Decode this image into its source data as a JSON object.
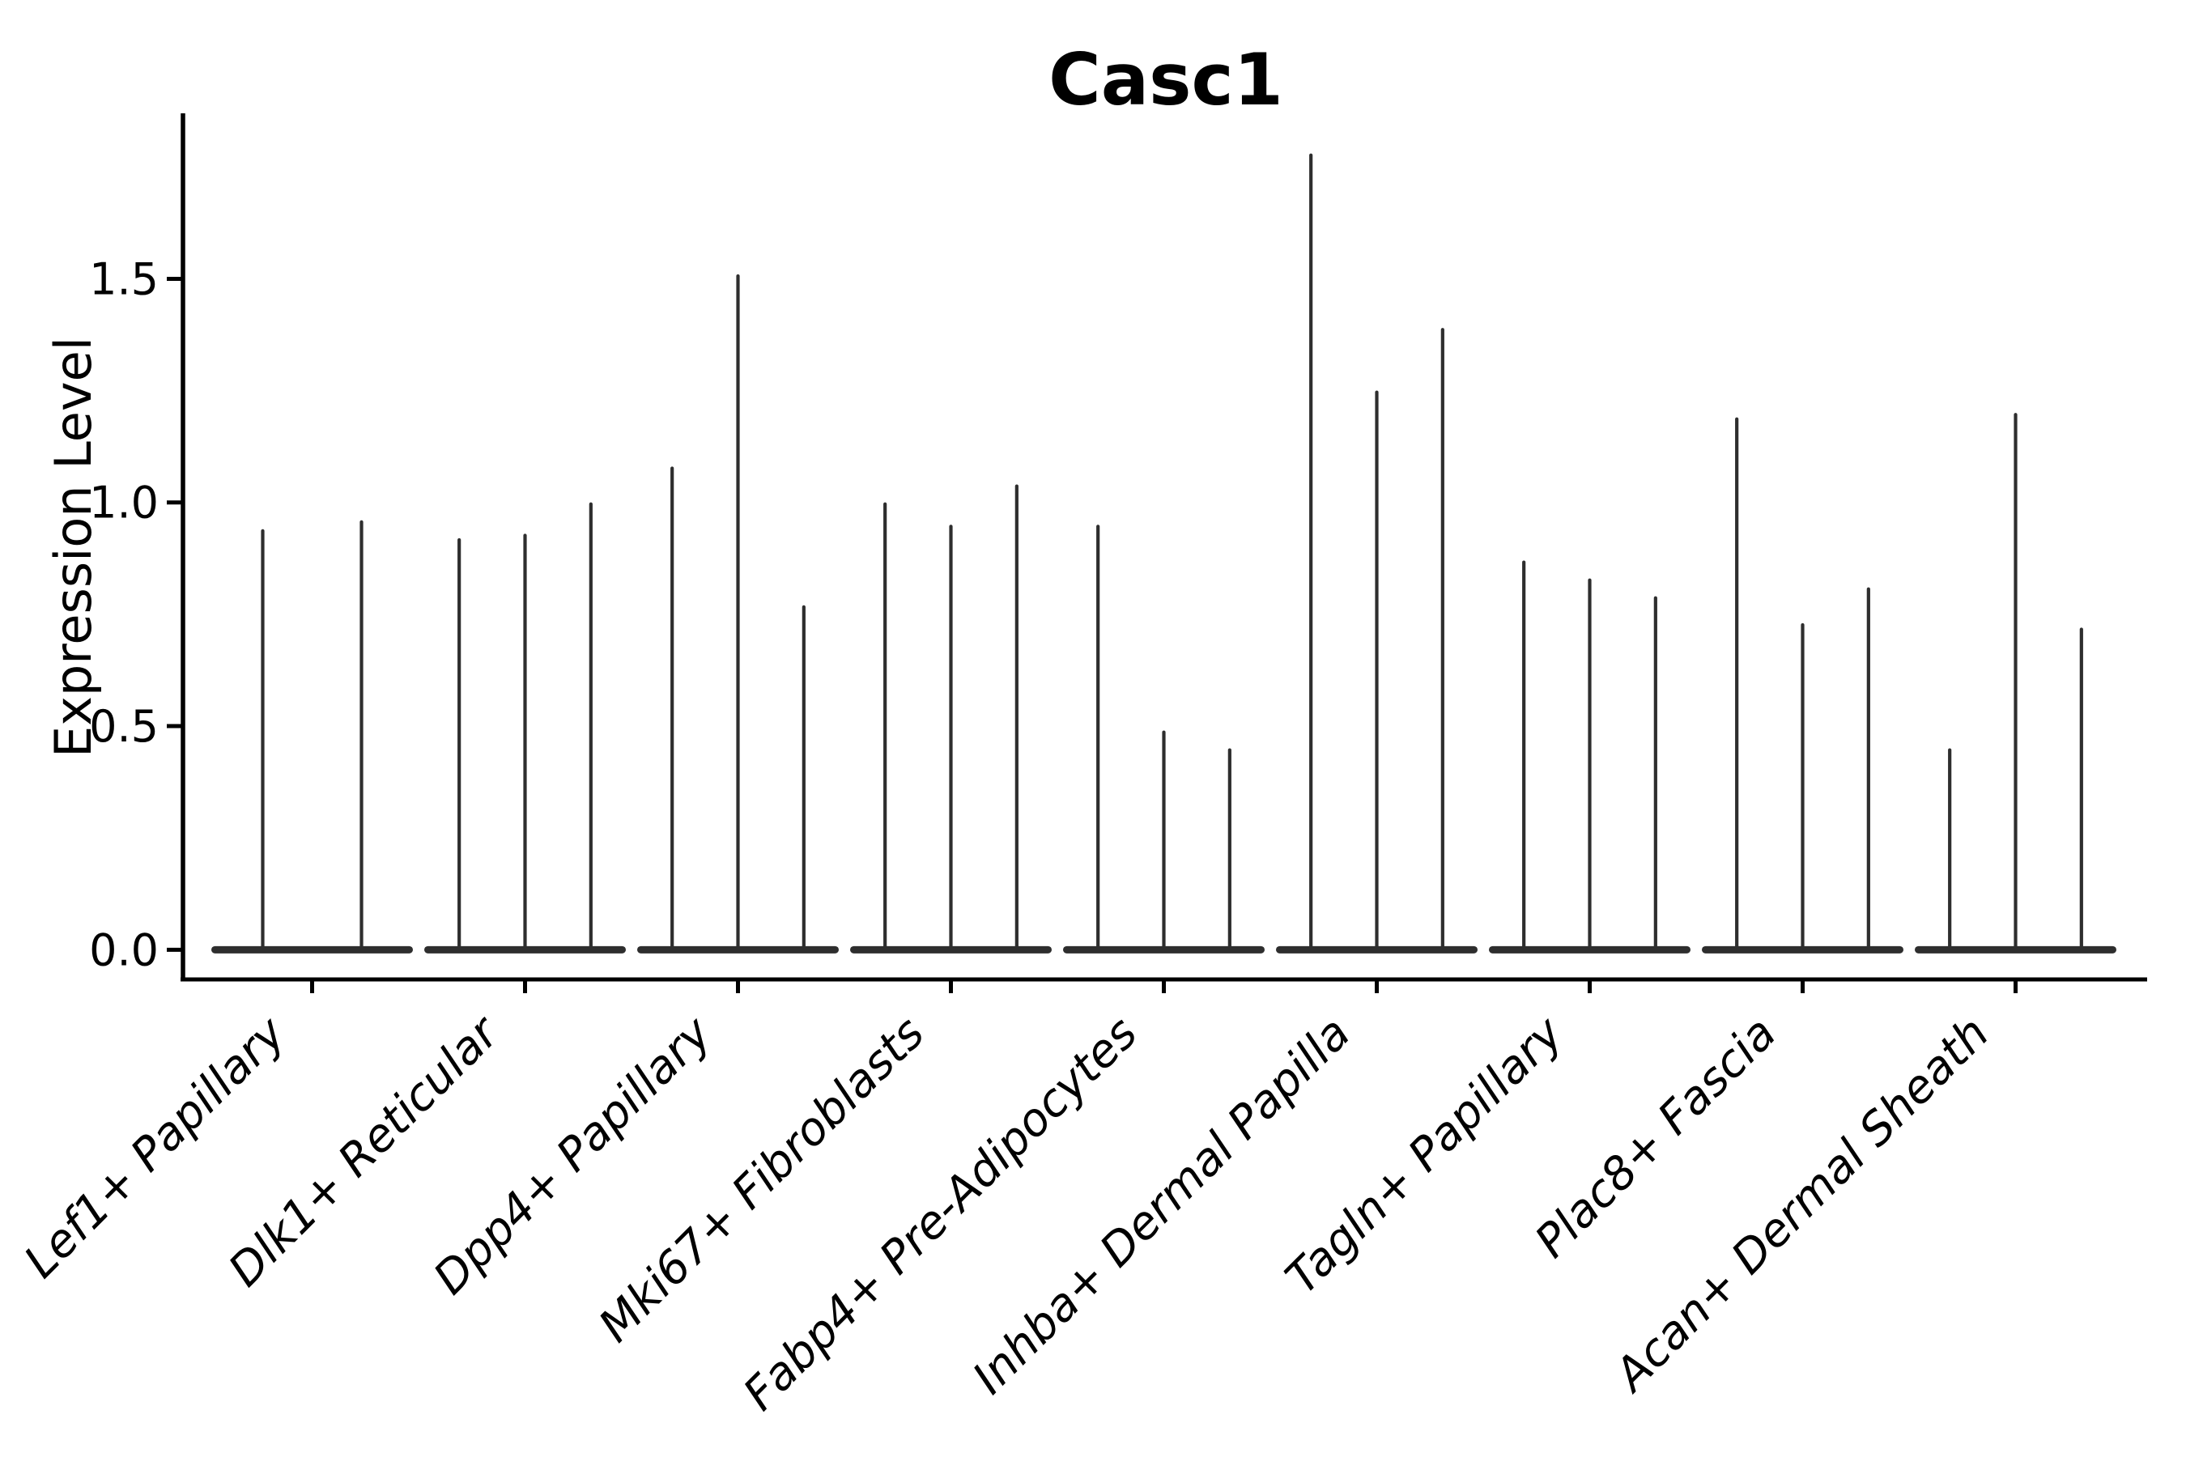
{
  "page": {
    "background": "#ffffff"
  },
  "chart_data": {
    "type": "violin",
    "title": "Casc1",
    "xlabel": "",
    "ylabel": "Expression Level",
    "ylim": [
      -0.07,
      1.87
    ],
    "yticks": [
      {
        "value": 0.0,
        "label": "0.0"
      },
      {
        "value": 0.5,
        "label": "0.5"
      },
      {
        "value": 1.0,
        "label": "1.0"
      },
      {
        "value": 1.5,
        "label": "1.5"
      }
    ],
    "grid": false,
    "legend_position": "none",
    "x_label_rotation_deg": 45,
    "categories": [
      "Lef1+ Papillary",
      "Dlk1+ Reticular",
      "Dpp4+ Papillary",
      "Mki67+ Fibroblasts",
      "Fabp4+ Pre-Adipocytes",
      "Inhba+ Dermal Papilla",
      "Tagln+ Papillary",
      "Plac8+ Fascia",
      "Acan+ Dermal Sheath"
    ],
    "groups": [
      {
        "category": "Lef1+ Papillary",
        "violin_maxima": [
          0.94,
          0.96
        ]
      },
      {
        "category": "Dlk1+ Reticular",
        "violin_maxima": [
          0.92,
          0.93,
          1.0
        ]
      },
      {
        "category": "Dpp4+ Papillary",
        "violin_maxima": [
          1.08,
          1.51,
          0.77
        ]
      },
      {
        "category": "Mki67+ Fibroblasts",
        "violin_maxima": [
          1.0,
          0.95,
          1.04
        ]
      },
      {
        "category": "Fabp4+ Pre-Adipocytes",
        "violin_maxima": [
          0.95,
          0.49,
          0.45
        ]
      },
      {
        "category": "Inhba+ Dermal Papilla",
        "violin_maxima": [
          1.78,
          1.25,
          1.39
        ]
      },
      {
        "category": "Tagln+ Papillary",
        "violin_maxima": [
          0.87,
          0.83,
          0.79
        ]
      },
      {
        "category": "Plac8+ Fascia",
        "violin_maxima": [
          1.19,
          0.73,
          0.81
        ]
      },
      {
        "category": "Acan+ Dermal Sheath",
        "violin_maxima": [
          0.45,
          1.2,
          0.72
        ]
      }
    ],
    "violin_body_note": "distributions concentrated at 0 (flat base) with thin density spike to maximum"
  },
  "colors": {
    "violin": "#2e2e2e",
    "axis": "#000000",
    "text": "#000000",
    "background": "#ffffff"
  }
}
